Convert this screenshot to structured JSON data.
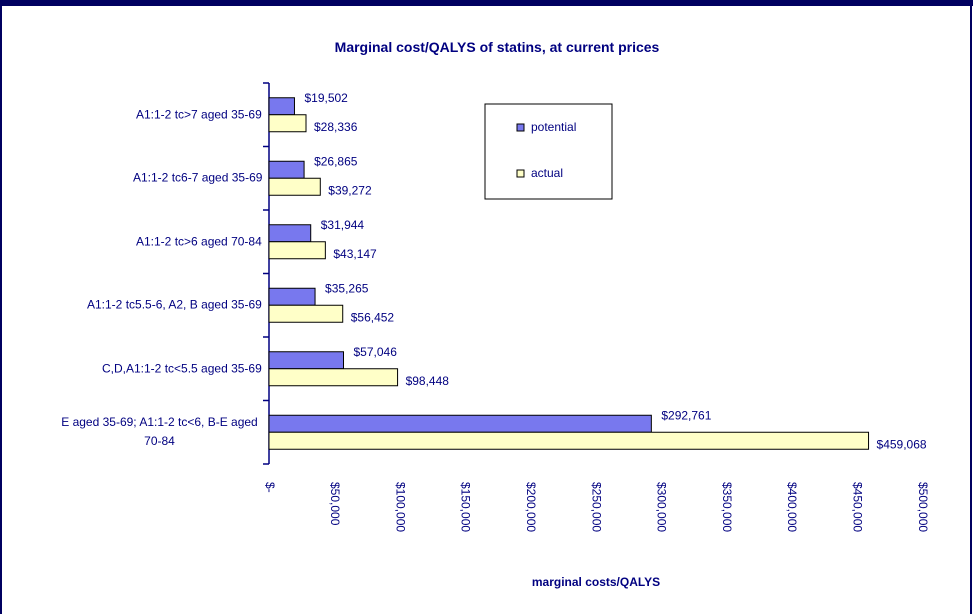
{
  "chart_data": {
    "type": "hbar",
    "title": "Marginal cost/QALYS of statins, at current prices",
    "x_label": "marginal costs/QALYS",
    "categories": [
      "A1:1-2 tc>7 aged 35-69",
      "A1:1-2 tc6-7 aged 35-69",
      "A1:1-2 tc>6 aged 70-84",
      "A1:1-2 tc5.5-6, A2, B  aged 35-69",
      "C,D,A1:1-2 tc<5.5 aged 35-69",
      "E aged 35-69; A1:1-2 tc<6, B-E aged 70-84"
    ],
    "series": [
      {
        "name": "potential",
        "color": "#7878ee",
        "values": [
          19502,
          26865,
          31944,
          35265,
          57046,
          292761
        ],
        "value_labels": [
          "$19,502",
          "$26,865",
          "$31,944",
          "$35,265",
          "$57,046",
          "$292,761"
        ]
      },
      {
        "name": "actual",
        "color": "#ffffc8",
        "values": [
          28336,
          39272,
          43147,
          56452,
          98448,
          459068
        ],
        "value_labels": [
          "$28,336",
          "$39,272",
          "$43,147",
          "$56,452",
          "$98,448",
          "$459,068"
        ]
      }
    ],
    "xlim": [
      0,
      500000
    ],
    "xticks": [
      {
        "value": 0,
        "label": "$-"
      },
      {
        "value": 50000,
        "label": "$50,000"
      },
      {
        "value": 100000,
        "label": "$100,000"
      },
      {
        "value": 150000,
        "label": "$150,000"
      },
      {
        "value": 200000,
        "label": "$200,000"
      },
      {
        "value": 250000,
        "label": "$250,000"
      },
      {
        "value": 300000,
        "label": "$300,000"
      },
      {
        "value": 350000,
        "label": "$350,000"
      },
      {
        "value": 400000,
        "label": "$400,000"
      },
      {
        "value": 450000,
        "label": "$450,000"
      },
      {
        "value": 500000,
        "label": "$500,000"
      }
    ],
    "grid": false,
    "legend": "top-right"
  }
}
